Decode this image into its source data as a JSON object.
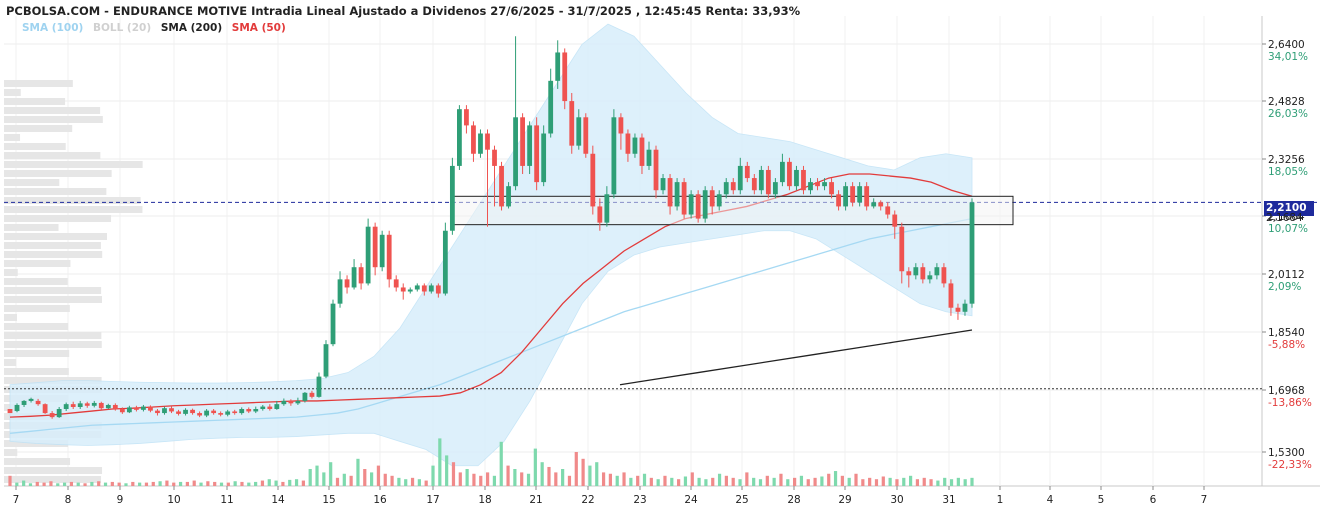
{
  "header": {
    "title": "PCBOLSA.COM - ENDURANCE MOTIVE Intradia Lineal Ajustado a Dividenos 27/6/2025 - 31/7/2025 , 12:45:45 Renta: 33,93%"
  },
  "legend": [
    {
      "label": "SMA (100)",
      "color": "#9fd3f0"
    },
    {
      "label": "BOLL (20)",
      "color": "#d0d0d0"
    },
    {
      "label": "SMA (200)",
      "color": "#222222"
    },
    {
      "label": "SMA (50)",
      "color": "#e23b3b"
    }
  ],
  "colors": {
    "up": "#2e9e76",
    "down": "#ef5350",
    "vol_up": "#7ed9ad",
    "vol_down": "#f08a8a",
    "boll_fill": "#d8eefb",
    "sma100": "#a6d9f3",
    "sma50": "#e23b3b",
    "sma200": "#222222",
    "last_price_line": "#1e2a9c",
    "pct_up": "#2e9e76",
    "pct_down": "#e23b3b"
  },
  "price_axis": {
    "ticks": [
      {
        "price": "2,6400",
        "pct": "34,01%"
      },
      {
        "price": "2,4828",
        "pct": "26,03%"
      },
      {
        "price": "2,3256",
        "pct": "18,05%"
      },
      {
        "price": "2,1684",
        "pct": "10,07%"
      },
      {
        "price": "2,0112",
        "pct": "2,09%"
      },
      {
        "price": "1,8540",
        "pct": "-5,88%"
      },
      {
        "price": "1,6968",
        "pct": "-13,86%"
      },
      {
        "price": "1,5300",
        "pct": "-22,33%"
      }
    ],
    "last_price": "2,2100",
    "last_price_secondary": "2,1684"
  },
  "date_axis": [
    "7",
    "8",
    "9",
    "10",
    "11",
    "14",
    "15",
    "16",
    "17",
    "18",
    "21",
    "22",
    "23",
    "24",
    "25",
    "28",
    "29",
    "30",
    "31",
    "1",
    "4",
    "5",
    "6",
    "7"
  ],
  "chart_data": {
    "type": "candlestick",
    "title": "ENDURANCE MOTIVE Intradia Lineal Ajustado a Dividenos 27/6/2025 - 31/7/2025",
    "ylim": [
      1.51,
      2.67
    ],
    "last_price": 2.21,
    "reference_price": 1.75,
    "range_box": [
      2.155,
      2.225
    ],
    "candles": [
      [
        1.7,
        1.69,
        1.74,
        1.74
      ],
      [
        1.695,
        1.71,
        1.714,
        1.692
      ],
      [
        1.71,
        1.72,
        1.722,
        1.705
      ],
      [
        1.72,
        1.725,
        1.728,
        1.716
      ],
      [
        1.72,
        1.712,
        1.725,
        1.708
      ],
      [
        1.712,
        1.69,
        1.714,
        1.688
      ],
      [
        1.69,
        1.68,
        1.695,
        1.676
      ],
      [
        1.68,
        1.7,
        1.705,
        1.678
      ],
      [
        1.7,
        1.712,
        1.716,
        1.695
      ],
      [
        1.712,
        1.705,
        1.718,
        1.7
      ],
      [
        1.705,
        1.714,
        1.72,
        1.7
      ],
      [
        1.714,
        1.708,
        1.718,
        1.703
      ],
      [
        1.708,
        1.715,
        1.72,
        1.704
      ],
      [
        1.715,
        1.702,
        1.718,
        1.698
      ],
      [
        1.702,
        1.71,
        1.713,
        1.7
      ],
      [
        1.71,
        1.7,
        1.714,
        1.696
      ],
      [
        1.7,
        1.692,
        1.704,
        1.688
      ],
      [
        1.692,
        1.704,
        1.708,
        1.69
      ],
      [
        1.704,
        1.698,
        1.708,
        1.694
      ],
      [
        1.698,
        1.706,
        1.71,
        1.694
      ],
      [
        1.706,
        1.696,
        1.709,
        1.692
      ],
      [
        1.696,
        1.69,
        1.7,
        1.684
      ],
      [
        1.69,
        1.702,
        1.706,
        1.686
      ],
      [
        1.702,
        1.694,
        1.706,
        1.69
      ],
      [
        1.694,
        1.688,
        1.698,
        1.684
      ],
      [
        1.688,
        1.698,
        1.702,
        1.684
      ],
      [
        1.698,
        1.69,
        1.701,
        1.686
      ],
      [
        1.69,
        1.684,
        1.694,
        1.68
      ],
      [
        1.684,
        1.696,
        1.7,
        1.68
      ],
      [
        1.696,
        1.69,
        1.7,
        1.686
      ],
      [
        1.69,
        1.686,
        1.694,
        1.682
      ],
      [
        1.686,
        1.694,
        1.698,
        1.682
      ],
      [
        1.694,
        1.69,
        1.698,
        1.686
      ],
      [
        1.69,
        1.7,
        1.704,
        1.686
      ],
      [
        1.7,
        1.694,
        1.704,
        1.69
      ],
      [
        1.694,
        1.7,
        1.706,
        1.69
      ],
      [
        1.7,
        1.706,
        1.71,
        1.696
      ],
      [
        1.706,
        1.7,
        1.712,
        1.696
      ],
      [
        1.7,
        1.712,
        1.72,
        1.698
      ],
      [
        1.712,
        1.72,
        1.726,
        1.708
      ],
      [
        1.72,
        1.714,
        1.724,
        1.708
      ],
      [
        1.714,
        1.72,
        1.728,
        1.71
      ],
      [
        1.72,
        1.74,
        1.742,
        1.716
      ],
      [
        1.74,
        1.73,
        1.745,
        1.726
      ],
      [
        1.73,
        1.78,
        1.79,
        1.728
      ],
      [
        1.78,
        1.86,
        1.87,
        1.776
      ],
      [
        1.86,
        1.96,
        1.97,
        1.855
      ],
      [
        1.96,
        2.02,
        2.04,
        1.95
      ],
      [
        2.02,
        2.0,
        2.03,
        1.985
      ],
      [
        2.0,
        2.05,
        2.07,
        1.995
      ],
      [
        2.05,
        2.01,
        2.06,
        1.995
      ],
      [
        2.01,
        2.15,
        2.17,
        2.005
      ],
      [
        2.15,
        2.05,
        2.16,
        2.03
      ],
      [
        2.05,
        2.13,
        2.14,
        2.04
      ],
      [
        2.13,
        2.02,
        2.14,
        2.0
      ],
      [
        2.02,
        2.0,
        2.03,
        1.99
      ],
      [
        2.0,
        1.99,
        2.01,
        1.97
      ],
      [
        1.99,
        1.995,
        2.0,
        1.985
      ],
      [
        1.995,
        2.005,
        2.01,
        1.99
      ],
      [
        2.005,
        1.99,
        2.01,
        1.98
      ],
      [
        1.99,
        2.005,
        2.01,
        1.985
      ],
      [
        2.005,
        1.985,
        2.01,
        1.975
      ],
      [
        1.985,
        2.14,
        2.16,
        1.98
      ],
      [
        2.14,
        2.3,
        2.32,
        2.13
      ],
      [
        2.3,
        2.44,
        2.45,
        2.29
      ],
      [
        2.44,
        2.4,
        2.45,
        2.38
      ],
      [
        2.4,
        2.33,
        2.41,
        2.31
      ],
      [
        2.33,
        2.38,
        2.39,
        2.32
      ],
      [
        2.38,
        2.34,
        2.39,
        2.15
      ],
      [
        2.34,
        2.3,
        2.35,
        2.2
      ],
      [
        2.3,
        2.2,
        2.31,
        2.19
      ],
      [
        2.2,
        2.25,
        2.26,
        2.195
      ],
      [
        2.25,
        2.42,
        2.62,
        2.24
      ],
      [
        2.42,
        2.3,
        2.43,
        2.28
      ],
      [
        2.3,
        2.4,
        2.41,
        2.28
      ],
      [
        2.4,
        2.26,
        2.42,
        2.24
      ],
      [
        2.26,
        2.38,
        2.4,
        2.25
      ],
      [
        2.38,
        2.51,
        2.54,
        2.37
      ],
      [
        2.51,
        2.58,
        2.61,
        2.49
      ],
      [
        2.58,
        2.46,
        2.59,
        2.44
      ],
      [
        2.46,
        2.35,
        2.48,
        2.33
      ],
      [
        2.35,
        2.42,
        2.44,
        2.34
      ],
      [
        2.42,
        2.33,
        2.43,
        2.32
      ],
      [
        2.33,
        2.2,
        2.35,
        2.18
      ],
      [
        2.2,
        2.16,
        2.22,
        2.14
      ],
      [
        2.16,
        2.23,
        2.25,
        2.15
      ],
      [
        2.23,
        2.42,
        2.44,
        2.22
      ],
      [
        2.42,
        2.38,
        2.43,
        2.34
      ],
      [
        2.38,
        2.33,
        2.39,
        2.31
      ],
      [
        2.33,
        2.37,
        2.38,
        2.32
      ],
      [
        2.37,
        2.3,
        2.38,
        2.28
      ],
      [
        2.3,
        2.34,
        2.36,
        2.29
      ],
      [
        2.34,
        2.24,
        2.35,
        2.22
      ],
      [
        2.24,
        2.27,
        2.28,
        2.23
      ],
      [
        2.27,
        2.2,
        2.28,
        2.18
      ],
      [
        2.2,
        2.26,
        2.27,
        2.19
      ],
      [
        2.26,
        2.18,
        2.27,
        2.17
      ],
      [
        2.18,
        2.23,
        2.24,
        2.17
      ],
      [
        2.23,
        2.17,
        2.24,
        2.16
      ],
      [
        2.17,
        2.24,
        2.25,
        2.16
      ],
      [
        2.24,
        2.2,
        2.25,
        2.18
      ],
      [
        2.2,
        2.23,
        2.24,
        2.19
      ],
      [
        2.23,
        2.26,
        2.27,
        2.22
      ],
      [
        2.26,
        2.24,
        2.27,
        2.23
      ],
      [
        2.24,
        2.3,
        2.32,
        2.23
      ],
      [
        2.3,
        2.27,
        2.31,
        2.26
      ],
      [
        2.27,
        2.24,
        2.28,
        2.23
      ],
      [
        2.24,
        2.29,
        2.3,
        2.23
      ],
      [
        2.29,
        2.23,
        2.3,
        2.22
      ],
      [
        2.23,
        2.26,
        2.27,
        2.22
      ],
      [
        2.26,
        2.31,
        2.33,
        2.25
      ],
      [
        2.31,
        2.25,
        2.32,
        2.24
      ],
      [
        2.25,
        2.29,
        2.3,
        2.24
      ],
      [
        2.29,
        2.24,
        2.3,
        2.23
      ],
      [
        2.24,
        2.26,
        2.27,
        2.23
      ],
      [
        2.26,
        2.25,
        2.27,
        2.24
      ],
      [
        2.25,
        2.26,
        2.27,
        2.24
      ],
      [
        2.26,
        2.23,
        2.27,
        2.22
      ],
      [
        2.23,
        2.2,
        2.24,
        2.19
      ],
      [
        2.2,
        2.25,
        2.26,
        2.19
      ],
      [
        2.25,
        2.21,
        2.26,
        2.2
      ],
      [
        2.21,
        2.25,
        2.26,
        2.2
      ],
      [
        2.25,
        2.2,
        2.26,
        2.19
      ],
      [
        2.2,
        2.21,
        2.22,
        2.195
      ],
      [
        2.21,
        2.2,
        2.215,
        2.19
      ],
      [
        2.2,
        2.18,
        2.21,
        2.17
      ],
      [
        2.18,
        2.15,
        2.19,
        2.12
      ],
      [
        2.15,
        2.04,
        2.16,
        2.01
      ],
      [
        2.04,
        2.03,
        2.05,
        2.0
      ],
      [
        2.03,
        2.05,
        2.06,
        2.02
      ],
      [
        2.05,
        2.02,
        2.06,
        2.01
      ],
      [
        2.02,
        2.03,
        2.04,
        2.01
      ],
      [
        2.03,
        2.05,
        2.06,
        2.02
      ],
      [
        2.05,
        2.01,
        2.06,
        2.0
      ],
      [
        2.01,
        1.95,
        2.02,
        1.93
      ],
      [
        1.95,
        1.94,
        1.96,
        1.92
      ],
      [
        1.94,
        1.96,
        1.97,
        1.93
      ],
      [
        1.96,
        2.21,
        2.22,
        1.95
      ]
    ],
    "sma50": [
      1.68,
      1.682,
      1.685,
      1.69,
      1.695,
      1.7,
      1.702,
      1.705,
      1.708,
      1.71,
      1.712,
      1.714,
      1.716,
      1.718,
      1.72,
      1.72,
      1.722,
      1.724,
      1.726,
      1.728,
      1.73,
      1.732,
      1.74,
      1.76,
      1.79,
      1.84,
      1.9,
      1.96,
      2.01,
      2.05,
      2.09,
      2.12,
      2.15,
      2.17,
      2.18,
      2.19,
      2.2,
      2.215,
      2.23,
      2.25,
      2.27,
      2.28,
      2.28,
      2.275,
      2.27,
      2.26,
      2.24,
      2.225
    ],
    "sma100": [
      1.64,
      1.645,
      1.65,
      1.655,
      1.66,
      1.662,
      1.664,
      1.666,
      1.668,
      1.67,
      1.672,
      1.674,
      1.676,
      1.678,
      1.68,
      1.685,
      1.69,
      1.7,
      1.715,
      1.73,
      1.745,
      1.76,
      1.78,
      1.8,
      1.82,
      1.84,
      1.86,
      1.88,
      1.9,
      1.92,
      1.94,
      1.955,
      1.97,
      1.985,
      2.0,
      2.015,
      2.03,
      2.045,
      2.06,
      2.075,
      2.09,
      2.105,
      2.12,
      2.13,
      2.14,
      2.15,
      2.16,
      2.17
    ],
    "sma200": [
      1.76,
      1.775,
      1.79,
      1.805,
      1.82,
      1.835,
      1.85,
      1.865,
      1.88,
      1.895
    ],
    "boll_upper": [
      1.76,
      1.765,
      1.77,
      1.77,
      1.768,
      1.766,
      1.765,
      1.764,
      1.764,
      1.765,
      1.767,
      1.77,
      1.775,
      1.79,
      1.83,
      1.9,
      2.0,
      2.1,
      2.2,
      2.3,
      2.4,
      2.5,
      2.6,
      2.65,
      2.62,
      2.55,
      2.48,
      2.42,
      2.38,
      2.37,
      2.36,
      2.34,
      2.32,
      2.3,
      2.29,
      2.32,
      2.33,
      2.32
    ],
    "boll_lower": [
      1.62,
      1.615,
      1.612,
      1.61,
      1.612,
      1.615,
      1.62,
      1.625,
      1.628,
      1.63,
      1.63,
      1.632,
      1.636,
      1.64,
      1.64,
      1.62,
      1.6,
      1.56,
      1.56,
      1.62,
      1.72,
      1.84,
      1.96,
      2.04,
      2.08,
      2.1,
      2.11,
      2.12,
      2.13,
      2.14,
      2.14,
      2.12,
      2.08,
      2.04,
      2.0,
      1.96,
      1.94,
      1.93
    ],
    "volume": [
      0.15,
      0.05,
      0.08,
      0.04,
      0.06,
      0.05,
      0.07,
      0.04,
      0.05,
      0.06,
      0.05,
      0.04,
      0.06,
      0.07,
      0.05,
      0.06,
      0.05,
      0.04,
      0.06,
      0.05,
      0.05,
      0.06,
      0.07,
      0.08,
      0.05,
      0.06,
      0.06,
      0.08,
      0.05,
      0.07,
      0.06,
      0.05,
      0.05,
      0.07,
      0.06,
      0.05,
      0.06,
      0.08,
      0.1,
      0.08,
      0.06,
      0.09,
      0.1,
      0.08,
      0.25,
      0.3,
      0.2,
      0.35,
      0.12,
      0.18,
      0.15,
      0.4,
      0.25,
      0.2,
      0.3,
      0.18,
      0.15,
      0.12,
      0.1,
      0.12,
      0.1,
      0.08,
      0.3,
      0.7,
      0.45,
      0.35,
      0.2,
      0.25,
      0.18,
      0.15,
      0.2,
      0.15,
      0.65,
      0.3,
      0.25,
      0.2,
      0.18,
      0.55,
      0.35,
      0.28,
      0.2,
      0.25,
      0.15,
      0.5,
      0.4,
      0.3,
      0.35,
      0.2,
      0.18,
      0.15,
      0.2,
      0.12,
      0.15,
      0.18,
      0.12,
      0.1,
      0.15,
      0.12,
      0.1,
      0.14,
      0.2,
      0.12,
      0.1,
      0.12,
      0.18,
      0.15,
      0.12,
      0.1,
      0.2,
      0.12,
      0.1,
      0.15,
      0.12,
      0.18,
      0.1,
      0.12,
      0.15,
      0.1,
      0.12,
      0.14,
      0.18,
      0.22,
      0.15,
      0.12,
      0.18,
      0.1,
      0.12,
      0.1,
      0.14,
      0.12,
      0.1,
      0.12,
      0.15,
      0.1,
      0.12,
      0.1,
      0.08,
      0.12,
      0.1,
      0.12,
      0.1,
      0.12
    ]
  }
}
